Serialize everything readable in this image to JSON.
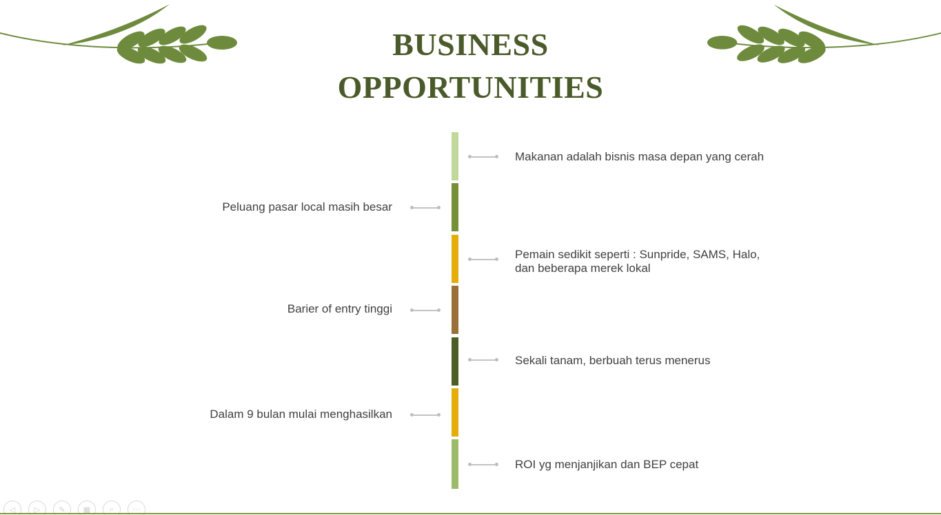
{
  "slide": {
    "title_line1": "BUSINESS",
    "title_line2": "OPPORTUNITIES",
    "title_color": "#4a5a2a",
    "leaf_color": "#6e8b3d"
  },
  "timeline": {
    "segment_colors": [
      "#c0d89a",
      "#76903a",
      "#e4ad09",
      "#9a6f38",
      "#4b5e28",
      "#e4ad09",
      "#9cbb6a"
    ],
    "items": [
      {
        "side": "right",
        "text": "Makanan adalah bisnis masa depan yang cerah"
      },
      {
        "side": "left",
        "text": "Peluang pasar local masih besar"
      },
      {
        "side": "right",
        "text": "Pemain sedikit seperti : Sunpride, SAMS, Halo, dan beberapa merek lokal"
      },
      {
        "side": "left",
        "text": "Barier of entry tinggi"
      },
      {
        "side": "right",
        "text": "Sekali tanam, berbuah terus menerus"
      },
      {
        "side": "left",
        "text": "Dalam 9 bulan mulai menghasilkan"
      },
      {
        "side": "right",
        "text": "ROI yg menjanjikan dan BEP cepat"
      }
    ]
  },
  "controls": {
    "icons": [
      "previous-icon",
      "next-icon",
      "pen-icon",
      "slides-icon",
      "zoom-icon",
      "more-icon"
    ],
    "glyphs": [
      "◁",
      "▷",
      "✎",
      "▦",
      "⌕",
      "···"
    ]
  }
}
